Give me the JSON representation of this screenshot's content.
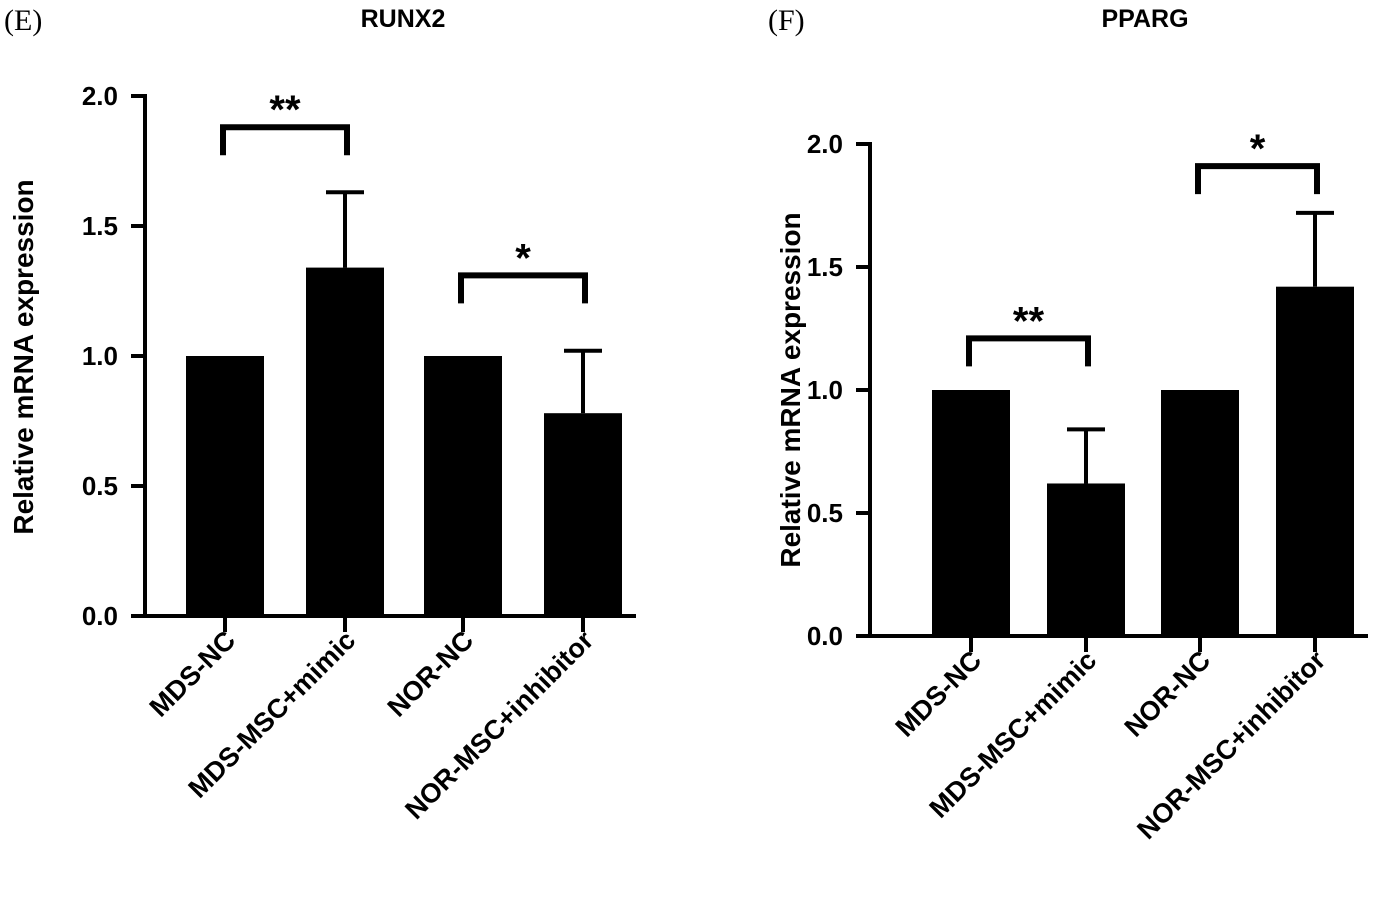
{
  "chart_data": [
    {
      "panel": "(E)",
      "type": "bar",
      "title": "RUNX2",
      "ylabel": "Relative mRNA expression",
      "xlabel": "",
      "ylim": [
        0,
        2.0
      ],
      "yticks": [
        "0.0",
        "0.5",
        "1.0",
        "1.5",
        "2.0"
      ],
      "categories": [
        "MDS-NC",
        "MDS-MSC+mimic",
        "NOR-NC",
        "NOR-MSC+inhibitor"
      ],
      "values": [
        1.0,
        1.34,
        1.0,
        0.78
      ],
      "errors": [
        0,
        0.29,
        0,
        0.24
      ],
      "color": "#000000",
      "significance": [
        {
          "from": 0,
          "to": 1,
          "label": "**",
          "y": 1.88
        },
        {
          "from": 2,
          "to": 3,
          "label": "*",
          "y": 1.31
        }
      ]
    },
    {
      "panel": "(F)",
      "type": "bar",
      "title": "PPARG",
      "ylabel": "Relative mRNA expression",
      "xlabel": "",
      "ylim": [
        0,
        2.0
      ],
      "yticks": [
        "0.0",
        "0.5",
        "1.0",
        "1.5",
        "2.0"
      ],
      "categories": [
        "MDS-NC",
        "MDS-MSC+mimic",
        "NOR-NC",
        "NOR-MSC+inhibitor"
      ],
      "values": [
        1.0,
        0.62,
        1.0,
        1.42
      ],
      "errors": [
        0,
        0.22,
        0,
        0.3
      ],
      "color": "#000000",
      "significance": [
        {
          "from": 0,
          "to": 1,
          "label": "**",
          "y": 1.21
        },
        {
          "from": 2,
          "to": 3,
          "label": "*",
          "y": 1.91
        }
      ]
    }
  ]
}
